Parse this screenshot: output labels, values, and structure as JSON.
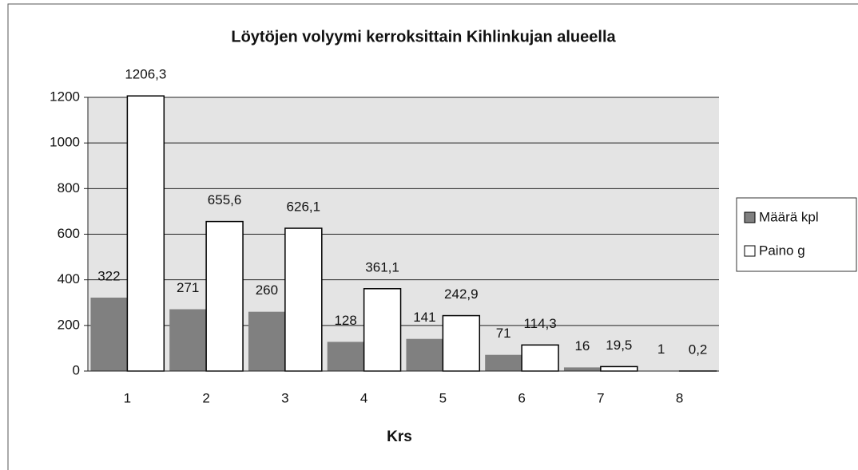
{
  "chart_data": {
    "type": "bar",
    "title": "Löytöjen volyymi kerroksittain Kihlinkujan alueella",
    "x_label": "Krs",
    "categories": [
      "1",
      "2",
      "3",
      "4",
      "5",
      "6",
      "7",
      "8"
    ],
    "series": [
      {
        "name": "Määrä kpl",
        "color": "#808080",
        "values": [
          322,
          271,
          260,
          128,
          141,
          71,
          16,
          1
        ]
      },
      {
        "name": "Paino g",
        "color": "#ffffff",
        "values": [
          1206.3,
          655.6,
          626.1,
          361.1,
          242.9,
          114.3,
          19.5,
          0.2
        ],
        "value_labels": [
          "1206,3",
          "655,6",
          "626,1",
          "361,1",
          "242,9",
          "114,3",
          "19,5",
          "0,2"
        ]
      }
    ],
    "ylim": [
      0,
      1200
    ],
    "yticks": [
      0,
      200,
      400,
      600,
      800,
      1000,
      1200
    ],
    "grid": true,
    "legend": "right"
  }
}
